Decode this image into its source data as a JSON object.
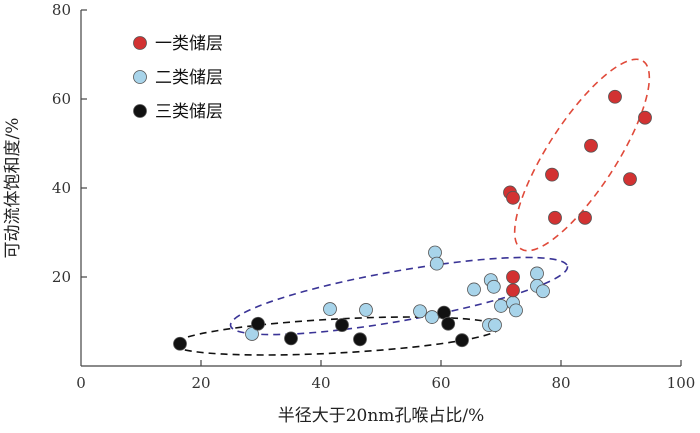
{
  "chart_data": {
    "type": "scatter",
    "xlabel": "半径大于20nm孔喉占比/%",
    "ylabel": "可动流体饱和度/%",
    "xlim": [
      0,
      100
    ],
    "ylim": [
      0,
      80
    ],
    "xticks": [
      0,
      20,
      40,
      60,
      80,
      100
    ],
    "yticks": [
      20,
      40,
      60,
      80
    ],
    "grid": false,
    "legend_position": "top-left",
    "series": [
      {
        "name": "一类储层",
        "color": "#d23232",
        "ellipse_color": "#e04a3a",
        "points": [
          [
            71.5,
            39
          ],
          [
            72,
            37.8
          ],
          [
            72,
            20
          ],
          [
            72,
            17
          ],
          [
            78.5,
            43
          ],
          [
            79,
            33.3
          ],
          [
            84,
            33.3
          ],
          [
            85,
            49.5
          ],
          [
            89,
            60.5
          ],
          [
            91.5,
            42
          ],
          [
            94,
            55.8
          ]
        ]
      },
      {
        "name": "二类储层",
        "color": "#a8d4ea",
        "ellipse_color": "#3a3496",
        "points": [
          [
            28.5,
            7.2
          ],
          [
            41.5,
            12.8
          ],
          [
            47.5,
            12.6
          ],
          [
            56.5,
            12.3
          ],
          [
            58.5,
            11
          ],
          [
            59,
            25.5
          ],
          [
            59.3,
            23
          ],
          [
            65.5,
            17.2
          ],
          [
            68,
            9.2
          ],
          [
            68.3,
            19.3
          ],
          [
            68.8,
            17.8
          ],
          [
            69,
            9.2
          ],
          [
            70,
            13.5
          ],
          [
            72,
            14.2
          ],
          [
            72.5,
            12.5
          ],
          [
            76,
            20.8
          ],
          [
            76,
            18
          ],
          [
            77,
            16.8
          ]
        ]
      },
      {
        "name": "三类储层",
        "color": "#111111",
        "ellipse_color": "#111111",
        "points": [
          [
            16.5,
            5
          ],
          [
            29.5,
            9.5
          ],
          [
            35,
            6.2
          ],
          [
            43.5,
            9.2
          ],
          [
            46.5,
            6
          ],
          [
            60.5,
            12
          ],
          [
            61.2,
            9.5
          ],
          [
            63.5,
            5.8
          ]
        ]
      }
    ]
  }
}
